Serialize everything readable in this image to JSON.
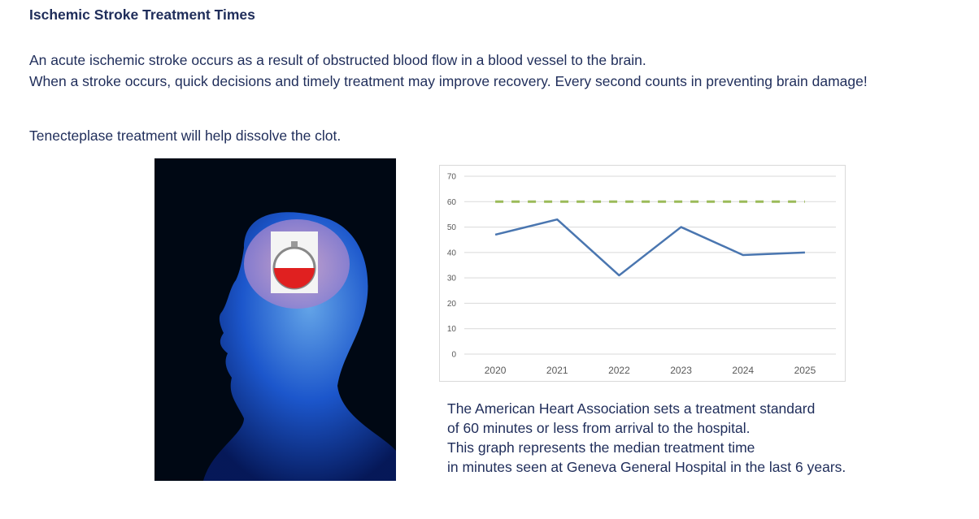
{
  "title": "Ischemic Stroke Treatment Times",
  "paragraphs": [
    "An acute ischemic stroke occurs as a result of obstructed blood flow in a blood vessel to the brain.",
    "When a stroke occurs, quick decisions and timely treatment may improve recovery. Every second counts in preventing brain damage!",
    "Tenecteplase treatment will help dissolve the clot."
  ],
  "image": {
    "description_icon": "brain-stopwatch-illustration"
  },
  "caption_lines": [
    "The American Heart Association sets a treatment standard",
    "of 60 minutes or less from arrival to the hospital.",
    "This graph represents the median treatment time",
    "in minutes seen at Geneva General Hospital in the last 6 years."
  ],
  "chart_data": {
    "type": "line",
    "categories": [
      "2020",
      "2021",
      "2022",
      "2023",
      "2024",
      "2025"
    ],
    "series": [
      {
        "values": [
          47,
          53,
          31,
          50,
          39,
          40
        ],
        "color": "#4a76b0",
        "style": "solid"
      },
      {
        "values": [
          60,
          60,
          60,
          60,
          60,
          60
        ],
        "color": "#9bbb59",
        "style": "dashed"
      }
    ],
    "ylim": [
      0,
      70
    ],
    "yticks": [
      "0",
      "10",
      "20",
      "30",
      "40",
      "50",
      "60",
      "70"
    ],
    "grid": true,
    "legend": "none"
  }
}
